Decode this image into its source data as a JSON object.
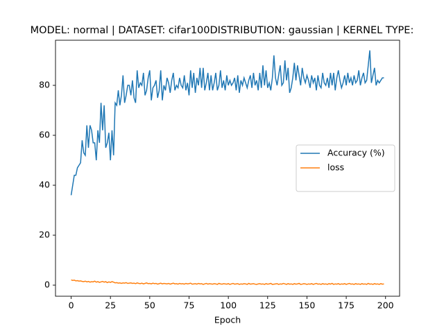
{
  "chart_data": {
    "type": "line",
    "title": "MODEL: normal | DATASET: cifar100DISTRIBUTION: gaussian | KERNEL TYPE:",
    "xlabel": "Epoch",
    "x": [
      0,
      1,
      2,
      3,
      4,
      5,
      6,
      7,
      8,
      9,
      10,
      11,
      12,
      13,
      14,
      15,
      16,
      17,
      18,
      19,
      20,
      21,
      22,
      23,
      24,
      25,
      26,
      27,
      28,
      29,
      30,
      31,
      32,
      33,
      34,
      35,
      36,
      37,
      38,
      39,
      40,
      41,
      42,
      43,
      44,
      45,
      46,
      47,
      48,
      49,
      50,
      51,
      52,
      53,
      54,
      55,
      56,
      57,
      58,
      59,
      60,
      61,
      62,
      63,
      64,
      65,
      66,
      67,
      68,
      69,
      70,
      71,
      72,
      73,
      74,
      75,
      76,
      77,
      78,
      79,
      80,
      81,
      82,
      83,
      84,
      85,
      86,
      87,
      88,
      89,
      90,
      91,
      92,
      93,
      94,
      95,
      96,
      97,
      98,
      99,
      100,
      101,
      102,
      103,
      104,
      105,
      106,
      107,
      108,
      109,
      110,
      111,
      112,
      113,
      114,
      115,
      116,
      117,
      118,
      119,
      120,
      121,
      122,
      123,
      124,
      125,
      126,
      127,
      128,
      129,
      130,
      131,
      132,
      133,
      134,
      135,
      136,
      137,
      138,
      139,
      140,
      141,
      142,
      143,
      144,
      145,
      146,
      147,
      148,
      149,
      150,
      151,
      152,
      153,
      154,
      155,
      156,
      157,
      158,
      159,
      160,
      161,
      162,
      163,
      164,
      165,
      166,
      167,
      168,
      169,
      170,
      171,
      172,
      173,
      174,
      175,
      176,
      177,
      178,
      179,
      180,
      181,
      182,
      183,
      184,
      185,
      186,
      187,
      188,
      189,
      190,
      191,
      192,
      193,
      194,
      195,
      196,
      197,
      198,
      199
    ],
    "series": [
      {
        "name": "Accuracy (%)",
        "color": "#1f77b4",
        "values": [
          36,
          40,
          44,
          44,
          47,
          48,
          49,
          58,
          53,
          52,
          64,
          55,
          64,
          62,
          57,
          57,
          50,
          62,
          57,
          73,
          62,
          72,
          55,
          57,
          61,
          50,
          62,
          52,
          73,
          72,
          78,
          72,
          76,
          84,
          73,
          76,
          80,
          80,
          76,
          82,
          75,
          73,
          86,
          79,
          81,
          80,
          85,
          76,
          78,
          83,
          86,
          74,
          79,
          80,
          82,
          75,
          78,
          86,
          74,
          80,
          78,
          83,
          81,
          77,
          82,
          85,
          78,
          80,
          79,
          83,
          80,
          79,
          84,
          78,
          81,
          76,
          86,
          79,
          85,
          77,
          83,
          80,
          87,
          79,
          87,
          78,
          81,
          85,
          78,
          84,
          78,
          81,
          85,
          78,
          80,
          86,
          79,
          82,
          78,
          84,
          80,
          82,
          80,
          81,
          83,
          78,
          84,
          77,
          82,
          80,
          83,
          81,
          79,
          82,
          84,
          79,
          85,
          80,
          82,
          78,
          85,
          79,
          88,
          80,
          86,
          79,
          81,
          78,
          83,
          92,
          83,
          80,
          84,
          88,
          80,
          81,
          90,
          82,
          87,
          77,
          79,
          83,
          89,
          82,
          88,
          84,
          80,
          87,
          83,
          81,
          84,
          82,
          79,
          84,
          81,
          83,
          78,
          84,
          80,
          79,
          85,
          81,
          80,
          83,
          79,
          85,
          80,
          85,
          78,
          83,
          86,
          82,
          79,
          81,
          84,
          80,
          85,
          81,
          83,
          80,
          84,
          81,
          82,
          86,
          80,
          83,
          85,
          81,
          82,
          88,
          94,
          81,
          84,
          87,
          80,
          82,
          81,
          82,
          83,
          83
        ]
      },
      {
        "name": "loss",
        "color": "#ff7f0e",
        "values": [
          2.1,
          1.9,
          2.0,
          1.7,
          1.8,
          1.6,
          1.7,
          1.5,
          1.4,
          1.6,
          1.3,
          1.5,
          1.2,
          1.4,
          1.3,
          1.6,
          1.2,
          1.4,
          1.1,
          1.3,
          1.5,
          1.2,
          1.4,
          1.0,
          1.3,
          1.1,
          1.4,
          1.2,
          0.9,
          1.0,
          0.8,
          0.9,
          0.7,
          0.9,
          0.8,
          1.0,
          0.7,
          0.8,
          0.9,
          0.7,
          0.8,
          0.6,
          0.9,
          0.7,
          0.6,
          0.8,
          0.5,
          0.7,
          0.9,
          0.6,
          0.7,
          0.5,
          0.8,
          0.6,
          0.7,
          0.4,
          0.6,
          0.8,
          0.5,
          0.7,
          0.6,
          0.5,
          0.7,
          0.4,
          0.6,
          0.8,
          0.5,
          0.6,
          0.4,
          0.7,
          0.5,
          0.6,
          0.4,
          0.7,
          0.5,
          0.6,
          0.8,
          0.4,
          0.5,
          0.6,
          0.4,
          0.7,
          0.5,
          0.6,
          0.3,
          0.5,
          0.7,
          0.4,
          0.6,
          0.5,
          0.4,
          0.6,
          0.5,
          0.3,
          0.7,
          0.5,
          0.4,
          0.6,
          0.5,
          0.4,
          0.6,
          0.3,
          0.5,
          0.7,
          0.4,
          0.5,
          0.6,
          0.3,
          0.5,
          0.4,
          0.6,
          0.5,
          0.3,
          0.7,
          0.4,
          0.5,
          0.6,
          0.4,
          0.3,
          0.5,
          0.6,
          0.4,
          0.5,
          0.3,
          0.6,
          0.4,
          0.5,
          0.7,
          0.3,
          0.4,
          0.5,
          0.6,
          0.3,
          0.5,
          0.4,
          0.7,
          0.5,
          0.3,
          0.6,
          0.4,
          0.5,
          0.3,
          0.6,
          0.4,
          0.5,
          0.7,
          0.3,
          0.4,
          0.6,
          0.5,
          0.3,
          0.5,
          0.4,
          0.6,
          0.3,
          0.5,
          0.7,
          0.4,
          0.5,
          0.3,
          0.6,
          0.4,
          0.5,
          0.3,
          0.6,
          0.4,
          0.7,
          0.3,
          0.5,
          0.4,
          0.6,
          0.3,
          0.5,
          0.4,
          0.6,
          0.3,
          0.5,
          0.7,
          0.4,
          0.5,
          0.3,
          0.6,
          0.4,
          0.5,
          0.3,
          0.6,
          0.4,
          0.5,
          0.3,
          0.7,
          0.4,
          0.5,
          0.3,
          0.6,
          0.4,
          0.5,
          0.3,
          0.6,
          0.4,
          0.5
        ]
      }
    ],
    "xlim": [
      -9.95,
      208.95
    ],
    "xticks": [
      0,
      25,
      50,
      75,
      100,
      125,
      150,
      175,
      200
    ],
    "ylim": [
      -4.44,
      98.06
    ],
    "yticks": [
      0,
      20,
      40,
      60,
      80
    ],
    "grid": false,
    "legend": "center right"
  }
}
